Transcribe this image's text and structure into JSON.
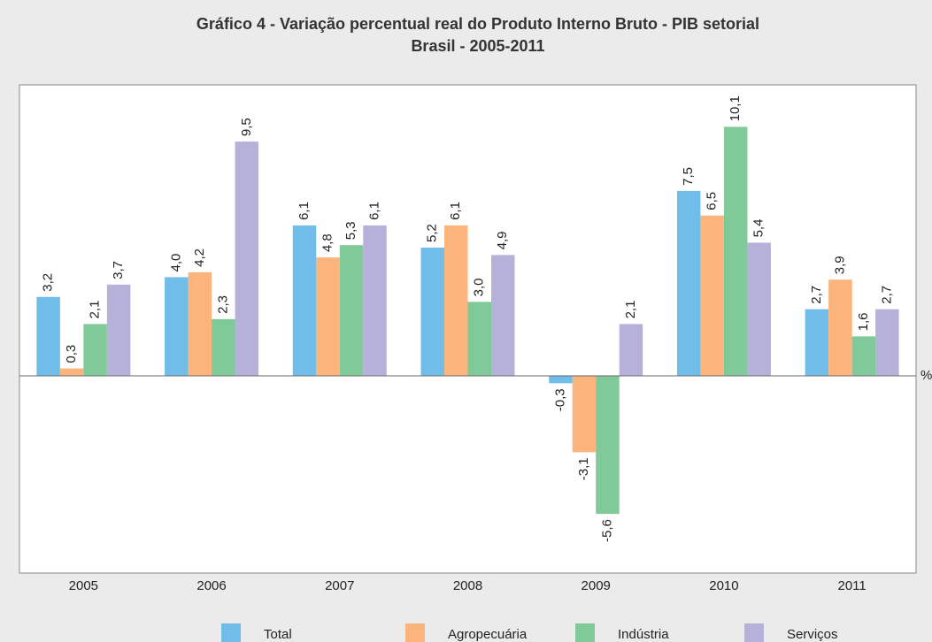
{
  "chart_data": {
    "type": "bar",
    "title": "Gráfico 4 - Variação percentual real do Produto Interno Bruto - PIB setorial",
    "subtitle": "Brasil - 2005-2011",
    "ylabel": "%",
    "categories": [
      "2005",
      "2006",
      "2007",
      "2008",
      "2009",
      "2010",
      "2011"
    ],
    "ylim": [
      -8,
      11.8
    ],
    "series": [
      {
        "name": "Total",
        "color": "#6fbde8",
        "values": [
          3.2,
          4.0,
          6.1,
          5.2,
          -0.3,
          7.5,
          2.7
        ],
        "value_labels": [
          "3,2",
          "4,0",
          "6,1",
          "5,2",
          "-0,3",
          "7,5",
          "2,7"
        ]
      },
      {
        "name": "Agropecuária",
        "color": "#fbb47c",
        "values": [
          0.3,
          4.2,
          4.8,
          6.1,
          -3.1,
          6.5,
          3.9
        ],
        "value_labels": [
          "0,3",
          "4,2",
          "4,8",
          "6,1",
          "-3,1",
          "6,5",
          "3,9"
        ]
      },
      {
        "name": "Indústria",
        "color": "#7fca98",
        "values": [
          2.1,
          2.3,
          5.3,
          3.0,
          -5.6,
          10.1,
          1.6
        ],
        "value_labels": [
          "2,1",
          "2,3",
          "5,3",
          "3,0",
          "-5,6",
          "10,1",
          "1,6"
        ]
      },
      {
        "name": "Serviços",
        "color": "#b6b1d9",
        "values": [
          3.7,
          9.5,
          6.1,
          4.9,
          2.1,
          5.4,
          2.7
        ],
        "value_labels": [
          "3,7",
          "9,5",
          "6,1",
          "4,9",
          "2,1",
          "5,4",
          "2,7"
        ]
      }
    ]
  }
}
